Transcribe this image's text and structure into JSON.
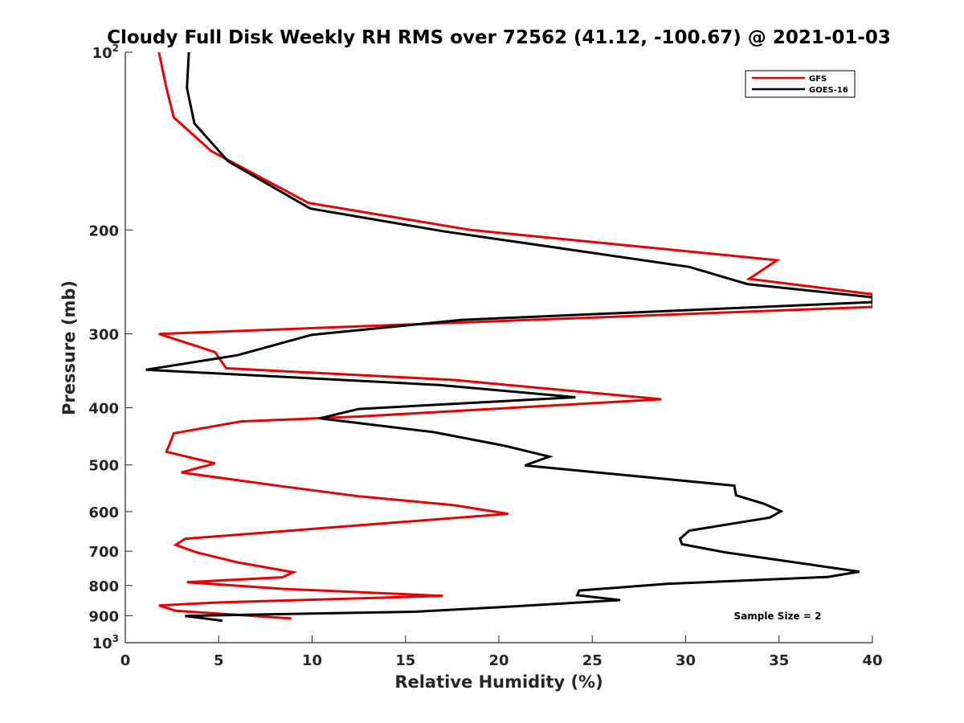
{
  "chart_data": {
    "type": "line",
    "title": "Cloudy Full Disk Weekly RH RMS over 72562 (41.12, -100.67) @ 2021-01-03",
    "xlabel": "Relative Humidity (%)",
    "ylabel": "Pressure (mb)",
    "xlim": [
      0,
      40
    ],
    "ylim": [
      100,
      1000
    ],
    "y_scale": "log",
    "y_reversed": true,
    "x_ticks": [
      0,
      5,
      10,
      15,
      20,
      25,
      30,
      35,
      40
    ],
    "y_ticks": [
      {
        "value": 100,
        "base": "10",
        "exp": "2"
      },
      {
        "value": 200,
        "label": "200"
      },
      {
        "value": 300,
        "label": "300"
      },
      {
        "value": 400,
        "label": "400"
      },
      {
        "value": 500,
        "label": "500"
      },
      {
        "value": 600,
        "label": "600"
      },
      {
        "value": 700,
        "label": "700"
      },
      {
        "value": 800,
        "label": "800"
      },
      {
        "value": 900,
        "label": "900"
      },
      {
        "value": 1000,
        "base": "10",
        "exp": "3"
      }
    ],
    "grid": false,
    "legend_position": "top-right",
    "annotation": "Sample Size = 2",
    "series": [
      {
        "name": "GFS",
        "color": "#e60000",
        "points": [
          [
            1.8,
            100
          ],
          [
            2.2,
            115
          ],
          [
            2.6,
            129
          ],
          [
            4.6,
            147
          ],
          [
            9.8,
            180
          ],
          [
            18.5,
            200
          ],
          [
            34.9,
            225
          ],
          [
            33.4,
            242
          ],
          [
            40.0,
            257
          ],
          [
            40.0,
            270
          ],
          [
            1.8,
            300
          ],
          [
            4.8,
            322
          ],
          [
            5.4,
            343
          ],
          [
            17.6,
            359
          ],
          [
            28.7,
            387
          ],
          [
            12.5,
            414
          ],
          [
            6.2,
            422
          ],
          [
            2.6,
            442
          ],
          [
            2.2,
            475
          ],
          [
            4.8,
            497
          ],
          [
            3.0,
            515
          ],
          [
            8.5,
            544
          ],
          [
            12.5,
            565
          ],
          [
            17.6,
            585
          ],
          [
            20.5,
            605
          ],
          [
            7.2,
            652
          ],
          [
            3.2,
            667
          ],
          [
            2.7,
            683
          ],
          [
            3.8,
            703
          ],
          [
            6.0,
            731
          ],
          [
            9.0,
            760
          ],
          [
            8.4,
            775
          ],
          [
            3.3,
            790
          ],
          [
            8.5,
            811
          ],
          [
            17.0,
            833
          ],
          [
            4.9,
            855
          ],
          [
            1.8,
            865
          ],
          [
            2.7,
            883
          ],
          [
            8.9,
            910
          ]
        ]
      },
      {
        "name": "GOES-16",
        "color": "#000000",
        "points": [
          [
            3.4,
            100
          ],
          [
            3.3,
            115
          ],
          [
            3.7,
            132
          ],
          [
            5.5,
            153
          ],
          [
            9.9,
            184
          ],
          [
            17.0,
            201
          ],
          [
            30.2,
            231
          ],
          [
            33.3,
            247
          ],
          [
            40.0,
            260
          ],
          [
            40.0,
            265
          ],
          [
            18.0,
            284
          ],
          [
            10.0,
            301
          ],
          [
            6.0,
            326
          ],
          [
            1.1,
            345
          ],
          [
            16.8,
            366
          ],
          [
            24.1,
            384
          ],
          [
            12.5,
            402
          ],
          [
            10.4,
            417
          ],
          [
            16.5,
            440
          ],
          [
            20.3,
            464
          ],
          [
            22.7,
            484
          ],
          [
            21.4,
            501
          ],
          [
            32.6,
            542
          ],
          [
            32.7,
            563
          ],
          [
            34.2,
            582
          ],
          [
            35.1,
            599
          ],
          [
            34.5,
            614
          ],
          [
            30.2,
            646
          ],
          [
            29.7,
            667
          ],
          [
            29.8,
            681
          ],
          [
            32.1,
            703
          ],
          [
            39.3,
            758
          ],
          [
            37.6,
            774
          ],
          [
            29.0,
            795
          ],
          [
            24.3,
            816
          ],
          [
            24.2,
            831
          ],
          [
            26.5,
            847
          ],
          [
            20.0,
            871
          ],
          [
            15.6,
            886
          ],
          [
            3.2,
            901
          ],
          [
            5.2,
            918
          ]
        ]
      }
    ]
  }
}
